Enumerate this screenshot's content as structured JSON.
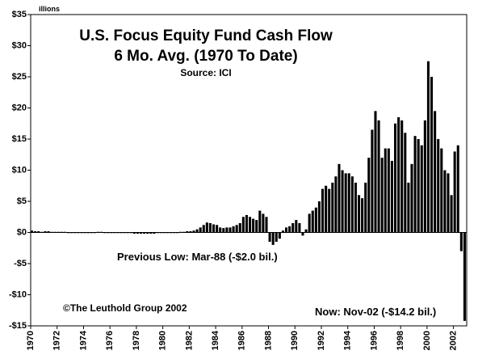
{
  "chart_data": {
    "type": "bar",
    "title": "U.S. Focus Equity Fund Cash Flow",
    "subtitle": "6 Mo. Avg. (1970 To Date)",
    "source": "Source: ICI",
    "y_label": "illions",
    "annotations": [
      "Previous Low: Mar-88 (-$2.0 bil.)",
      "©The Leuthold Group 2002",
      "Now: Nov-02 (-$14.2 bil.)"
    ],
    "color": "#000000",
    "x": [
      1970,
      1970.25,
      1970.5,
      1970.75,
      1971,
      1971.25,
      1971.5,
      1971.75,
      1972,
      1972.25,
      1972.5,
      1972.75,
      1973,
      1973.25,
      1973.5,
      1973.75,
      1974,
      1974.25,
      1974.5,
      1974.75,
      1975,
      1975.25,
      1975.5,
      1975.75,
      1976,
      1976.25,
      1976.5,
      1976.75,
      1977,
      1977.25,
      1977.5,
      1977.75,
      1978,
      1978.25,
      1978.5,
      1978.75,
      1979,
      1979.25,
      1979.5,
      1979.75,
      1980,
      1980.25,
      1980.5,
      1980.75,
      1981,
      1981.25,
      1981.5,
      1981.75,
      1982,
      1982.25,
      1982.5,
      1982.75,
      1983,
      1983.25,
      1983.5,
      1983.75,
      1984,
      1984.25,
      1984.5,
      1984.75,
      1985,
      1985.25,
      1985.5,
      1985.75,
      1986,
      1986.25,
      1986.5,
      1986.75,
      1987,
      1987.25,
      1987.5,
      1987.75,
      1988,
      1988.25,
      1988.5,
      1988.75,
      1989,
      1989.25,
      1989.5,
      1989.75,
      1990,
      1990.25,
      1990.5,
      1990.75,
      1991,
      1991.25,
      1991.5,
      1991.75,
      1992,
      1992.25,
      1992.5,
      1992.75,
      1993,
      1993.25,
      1993.5,
      1993.75,
      1994,
      1994.25,
      1994.5,
      1994.75,
      1995,
      1995.25,
      1995.5,
      1995.75,
      1996,
      1996.25,
      1996.5,
      1996.75,
      1997,
      1997.25,
      1997.5,
      1997.75,
      1998,
      1998.25,
      1998.5,
      1998.75,
      1999,
      1999.25,
      1999.5,
      1999.75,
      2000,
      2000.25,
      2000.5,
      2000.75,
      2001,
      2001.25,
      2001.5,
      2001.75,
      2002,
      2002.25,
      2002.5,
      2002.75
    ],
    "values": [
      0.3,
      0.2,
      0.2,
      0.1,
      0.2,
      0.2,
      0.1,
      0.1,
      0.1,
      0.1,
      0.1,
      0,
      0,
      0,
      -0.1,
      -0.1,
      -0.1,
      0,
      0,
      0,
      0.1,
      0.1,
      0,
      0,
      0,
      0,
      0,
      -0.1,
      -0.1,
      -0.1,
      -0.1,
      -0.2,
      -0.2,
      -0.2,
      -0.2,
      -0.2,
      -0.2,
      -0.2,
      -0.1,
      -0.1,
      -0.1,
      -0.1,
      0,
      0,
      0,
      0.1,
      0.1,
      0.2,
      0.2,
      0.3,
      0.5,
      0.8,
      1.2,
      1.6,
      1.5,
      1.3,
      1.2,
      0.8,
      0.7,
      0.8,
      0.8,
      1.0,
      1.2,
      1.5,
      2.5,
      2.8,
      2.5,
      2.2,
      2.0,
      3.5,
      3.0,
      2.5,
      -1.5,
      -2.0,
      -1.5,
      -1.0,
      0.3,
      0.8,
      1.0,
      1.5,
      2.0,
      1.5,
      -0.5,
      0.5,
      3.0,
      3.5,
      4.0,
      5.0,
      7.0,
      7.5,
      7.0,
      8.0,
      9.0,
      11.0,
      10.0,
      9.5,
      9.5,
      9.0,
      8.0,
      6.0,
      5.5,
      8.0,
      12.0,
      16.5,
      19.5,
      18.0,
      12.0,
      13.5,
      13.5,
      11.5,
      17.5,
      18.5,
      18.0,
      16.0,
      8.0,
      11.0,
      15.5,
      15.0,
      14.0,
      18.0,
      27.5,
      25.0,
      19.5,
      15.0,
      13.5,
      10.0,
      9.5,
      6.0,
      13.0,
      14.0,
      -3.0,
      -14.2
    ],
    "xlim": [
      1970,
      2003
    ],
    "xticks": [
      1970,
      1972,
      1974,
      1976,
      1978,
      1980,
      1982,
      1984,
      1986,
      1988,
      1990,
      1992,
      1994,
      1996,
      1998,
      2000,
      2002
    ],
    "ylim": [
      -15,
      35
    ],
    "yticks": [
      {
        "value": -15,
        "label": "-$15"
      },
      {
        "value": -10,
        "label": "-$10"
      },
      {
        "value": -5,
        "label": "-$5"
      },
      {
        "value": 0,
        "label": "$0"
      },
      {
        "value": 5,
        "label": "$5"
      },
      {
        "value": 10,
        "label": "$10"
      },
      {
        "value": 15,
        "label": "$15"
      },
      {
        "value": 20,
        "label": "$20"
      },
      {
        "value": 25,
        "label": "$25"
      },
      {
        "value": 30,
        "label": "$30"
      },
      {
        "value": 35,
        "label": "$35"
      }
    ]
  }
}
